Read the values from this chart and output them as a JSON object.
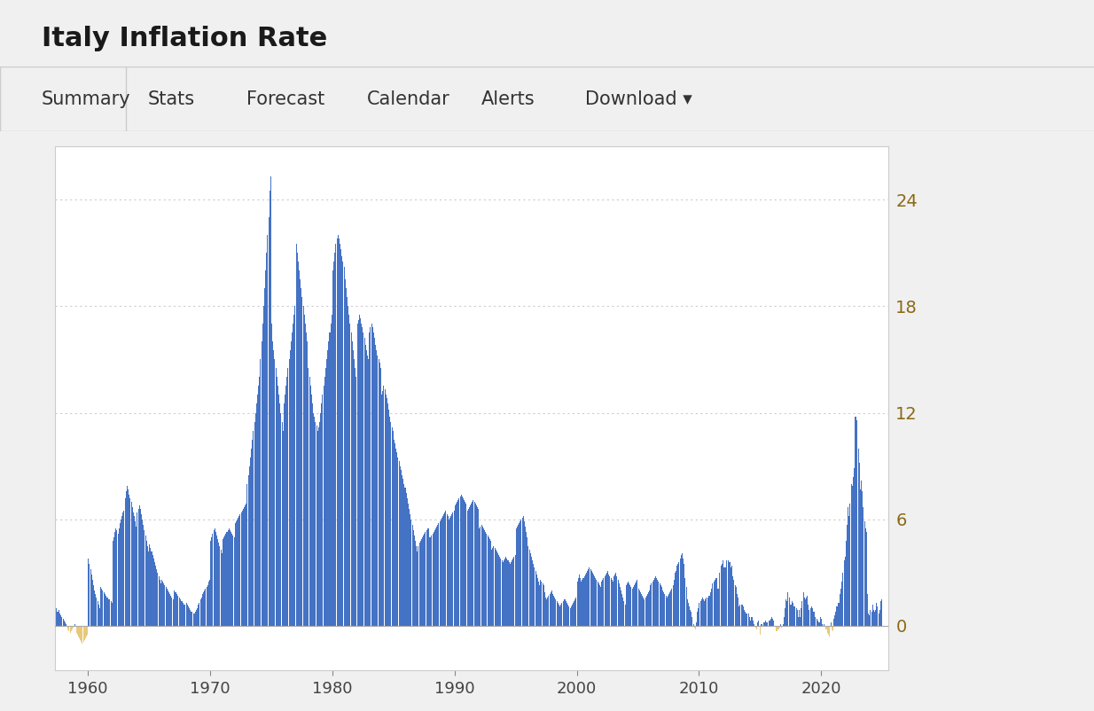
{
  "title": "Italy Inflation Rate",
  "nav_items": [
    "Summary",
    "Stats",
    "Forecast",
    "Calendar",
    "Alerts",
    "Download ▾"
  ],
  "bar_color": "#4472C4",
  "negative_bar_color": "#E8C87A",
  "background_color": "#f0f0f0",
  "chart_bg": "#ffffff",
  "header_bg": "#ebebeb",
  "nav_bg": "#ffffff",
  "ytick_color": "#8B6914",
  "yticks": [
    0,
    6,
    12,
    18,
    24
  ],
  "xticks": [
    1960,
    1970,
    1980,
    1990,
    2000,
    2010,
    2020
  ],
  "ymin": -2.5,
  "ymax": 27,
  "title_fontsize": 22,
  "nav_fontsize": 15,
  "axis_fontsize": 13,
  "grid_color": "#cccccc",
  "monthly_data": {
    "1957": [
      1.8,
      1.6,
      1.4,
      1.2,
      1.0,
      0.8,
      0.8,
      0.9,
      0.7,
      0.6,
      0.5,
      0.4
    ],
    "1958": [
      0.3,
      0.2,
      0.1,
      0.0,
      -0.2,
      -0.3,
      -0.4,
      -0.3,
      -0.2,
      -0.1,
      0.0,
      0.1
    ],
    "1959": [
      -0.4,
      -0.5,
      -0.6,
      -0.7,
      -0.8,
      -0.9,
      -1.0,
      -0.9,
      -0.8,
      -0.7,
      -0.6,
      -0.5
    ],
    "1960": [
      3.8,
      3.5,
      3.2,
      2.9,
      2.6,
      2.3,
      2.0,
      1.8,
      1.6,
      1.4,
      1.2,
      1.0
    ],
    "1961": [
      2.2,
      2.1,
      2.0,
      1.9,
      1.8,
      1.7,
      1.6,
      1.6,
      1.5,
      1.5,
      1.4,
      1.3
    ],
    "1962": [
      4.8,
      5.0,
      5.3,
      5.5,
      5.4,
      5.2,
      5.5,
      5.8,
      6.0,
      6.2,
      6.4,
      6.5
    ],
    "1963": [
      7.2,
      7.6,
      7.9,
      7.7,
      7.4,
      7.2,
      7.0,
      6.7,
      6.4,
      6.2,
      5.9,
      5.6
    ],
    "1964": [
      6.4,
      6.6,
      6.8,
      6.6,
      6.3,
      6.0,
      5.7,
      5.4,
      5.1,
      4.8,
      4.5,
      4.2
    ],
    "1965": [
      4.6,
      4.4,
      4.2,
      4.0,
      3.8,
      3.6,
      3.4,
      3.2,
      3.0,
      2.8,
      2.6,
      2.4
    ],
    "1966": [
      2.6,
      2.5,
      2.4,
      2.3,
      2.2,
      2.1,
      2.0,
      1.9,
      1.8,
      1.7,
      1.6,
      1.5
    ],
    "1967": [
      2.0,
      1.9,
      1.9,
      1.8,
      1.7,
      1.6,
      1.5,
      1.4,
      1.4,
      1.3,
      1.2,
      1.2
    ],
    "1968": [
      1.3,
      1.2,
      1.1,
      1.0,
      0.9,
      0.8,
      0.8,
      0.7,
      0.7,
      0.8,
      0.9,
      1.0
    ],
    "1969": [
      1.2,
      1.3,
      1.5,
      1.6,
      1.8,
      1.9,
      2.0,
      2.1,
      2.2,
      2.3,
      2.5,
      2.6
    ],
    "1970": [
      4.8,
      5.0,
      5.2,
      5.4,
      5.5,
      5.3,
      5.1,
      4.9,
      4.7,
      4.5,
      4.3,
      4.1
    ],
    "1971": [
      4.9,
      5.0,
      5.1,
      5.2,
      5.3,
      5.4,
      5.5,
      5.4,
      5.3,
      5.2,
      5.1,
      5.0
    ],
    "1972": [
      5.8,
      5.9,
      6.0,
      6.1,
      6.2,
      6.3,
      6.4,
      6.5,
      6.6,
      6.7,
      6.8,
      6.9
    ],
    "1973": [
      8.0,
      8.5,
      9.0,
      9.5,
      10.0,
      10.5,
      11.0,
      11.5,
      12.0,
      12.5,
      13.0,
      13.5
    ],
    "1974": [
      14.0,
      15.0,
      16.0,
      17.0,
      18.0,
      19.0,
      20.0,
      21.0,
      22.0,
      23.0,
      24.5,
      25.3
    ],
    "1975": [
      17.0,
      16.0,
      15.5,
      15.0,
      14.5,
      14.0,
      13.5,
      13.0,
      12.5,
      12.0,
      11.5,
      11.0
    ],
    "1976": [
      12.5,
      13.0,
      13.5,
      14.0,
      14.5,
      15.0,
      15.5,
      16.0,
      16.5,
      17.0,
      17.5,
      18.0
    ],
    "1977": [
      21.5,
      21.0,
      20.5,
      20.0,
      19.5,
      19.0,
      18.5,
      18.0,
      17.5,
      17.0,
      16.5,
      16.0
    ],
    "1978": [
      14.5,
      14.0,
      13.5,
      13.0,
      12.5,
      12.0,
      11.8,
      11.5,
      11.3,
      11.0,
      11.2,
      11.5
    ],
    "1979": [
      12.0,
      12.5,
      13.0,
      13.5,
      14.0,
      14.5,
      15.0,
      15.5,
      16.0,
      16.5,
      17.0,
      17.5
    ],
    "1980": [
      20.0,
      20.5,
      21.0,
      21.5,
      21.8,
      22.0,
      21.8,
      21.5,
      21.2,
      20.8,
      20.5,
      20.2
    ],
    "1981": [
      19.5,
      19.0,
      18.5,
      18.0,
      17.5,
      17.0,
      16.5,
      16.0,
      15.5,
      15.0,
      14.5,
      14.0
    ],
    "1982": [
      17.0,
      17.2,
      17.5,
      17.3,
      17.0,
      16.8,
      16.5,
      16.2,
      15.8,
      15.5,
      15.2,
      15.0
    ],
    "1983": [
      16.5,
      16.8,
      17.0,
      16.8,
      16.5,
      16.2,
      15.8,
      15.5,
      15.2,
      15.0,
      14.8,
      14.5
    ],
    "1984": [
      13.0,
      13.2,
      13.5,
      13.3,
      13.0,
      12.8,
      12.5,
      12.2,
      11.8,
      11.5,
      11.2,
      11.0
    ],
    "1985": [
      10.5,
      10.3,
      10.0,
      9.8,
      9.5,
      9.3,
      9.0,
      8.8,
      8.5,
      8.3,
      8.0,
      7.8
    ],
    "1986": [
      7.5,
      7.2,
      6.9,
      6.6,
      6.3,
      6.0,
      5.7,
      5.4,
      5.1,
      4.8,
      4.5,
      4.2
    ],
    "1987": [
      4.5,
      4.7,
      4.8,
      4.9,
      5.0,
      5.1,
      5.2,
      5.3,
      5.4,
      5.5,
      5.5,
      5.0
    ],
    "1988": [
      5.0,
      5.1,
      5.2,
      5.3,
      5.4,
      5.5,
      5.6,
      5.7,
      5.8,
      5.9,
      6.0,
      6.1
    ],
    "1989": [
      6.2,
      6.3,
      6.4,
      6.5,
      6.3,
      6.2,
      6.0,
      6.1,
      6.2,
      6.3,
      6.4,
      6.5
    ],
    "1990": [
      6.8,
      6.9,
      7.0,
      7.1,
      7.2,
      7.3,
      7.4,
      7.3,
      7.2,
      7.1,
      7.0,
      6.9
    ],
    "1991": [
      6.5,
      6.6,
      6.7,
      6.8,
      6.9,
      7.0,
      7.1,
      7.0,
      6.9,
      6.8,
      6.7,
      6.6
    ],
    "1992": [
      5.5,
      5.6,
      5.7,
      5.6,
      5.5,
      5.4,
      5.3,
      5.2,
      5.1,
      5.0,
      4.9,
      4.8
    ],
    "1993": [
      4.3,
      4.4,
      4.5,
      4.4,
      4.3,
      4.2,
      4.1,
      4.0,
      3.9,
      3.8,
      3.7,
      3.6
    ],
    "1994": [
      3.7,
      3.8,
      3.9,
      3.8,
      3.7,
      3.6,
      3.5,
      3.6,
      3.7,
      3.8,
      3.9,
      4.0
    ],
    "1995": [
      5.5,
      5.6,
      5.7,
      5.8,
      5.9,
      6.0,
      6.1,
      6.2,
      5.9,
      5.6,
      5.3,
      5.0
    ],
    "1996": [
      4.5,
      4.3,
      4.1,
      3.9,
      3.7,
      3.5,
      3.3,
      3.1,
      2.9,
      2.7,
      2.5,
      2.3
    ],
    "1997": [
      2.6,
      2.5,
      2.4,
      2.3,
      1.9,
      1.6,
      1.5,
      1.6,
      1.7,
      1.8,
      1.9,
      2.0
    ],
    "1998": [
      1.8,
      1.7,
      1.6,
      1.5,
      1.4,
      1.3,
      1.2,
      1.1,
      1.2,
      1.3,
      1.4,
      1.5
    ],
    "1999": [
      1.5,
      1.4,
      1.3,
      1.2,
      1.1,
      1.0,
      1.1,
      1.2,
      1.3,
      1.4,
      1.5,
      1.6
    ],
    "2000": [
      2.5,
      2.7,
      2.9,
      2.7,
      2.5,
      2.6,
      2.7,
      2.8,
      2.9,
      3.0,
      3.1,
      3.2
    ],
    "2001": [
      3.3,
      3.2,
      3.1,
      3.0,
      2.9,
      2.8,
      2.7,
      2.6,
      2.5,
      2.4,
      2.3,
      2.2
    ],
    "2002": [
      2.5,
      2.6,
      2.7,
      2.8,
      2.9,
      3.0,
      3.1,
      2.9,
      2.8,
      2.7,
      2.6,
      2.5
    ],
    "2003": [
      2.8,
      2.9,
      3.0,
      2.8,
      2.6,
      2.4,
      2.2,
      2.0,
      1.8,
      1.6,
      1.4,
      1.2
    ],
    "2004": [
      2.3,
      2.4,
      2.5,
      2.4,
      2.3,
      2.2,
      2.1,
      2.2,
      2.3,
      2.4,
      2.5,
      2.6
    ],
    "2005": [
      2.1,
      2.0,
      1.9,
      1.8,
      1.7,
      1.6,
      1.5,
      1.6,
      1.7,
      1.8,
      1.9,
      2.0
    ],
    "2006": [
      2.3,
      2.4,
      2.5,
      2.6,
      2.7,
      2.8,
      2.7,
      2.6,
      2.5,
      2.4,
      2.3,
      2.2
    ],
    "2007": [
      2.0,
      1.9,
      1.8,
      1.7,
      1.6,
      1.7,
      1.8,
      1.9,
      2.0,
      2.1,
      2.3,
      2.6
    ],
    "2008": [
      3.0,
      3.1,
      3.4,
      3.5,
      3.6,
      3.8,
      4.0,
      4.1,
      3.8,
      3.5,
      2.7,
      2.2
    ],
    "2009": [
      1.5,
      1.3,
      1.1,
      0.9,
      0.8,
      0.5,
      0.1,
      -0.1,
      -0.2,
      0.2,
      0.8,
      1.0
    ],
    "2010": [
      1.3,
      1.4,
      1.5,
      1.6,
      1.5,
      1.4,
      1.5,
      1.6,
      1.6,
      1.7,
      1.7,
      1.9
    ],
    "2011": [
      2.1,
      2.4,
      2.5,
      2.6,
      2.7,
      2.7,
      2.1,
      2.1,
      3.0,
      3.4,
      3.5,
      3.7
    ],
    "2012": [
      3.3,
      3.3,
      3.3,
      3.7,
      3.7,
      3.6,
      3.6,
      3.3,
      3.4,
      2.8,
      2.6,
      2.3
    ],
    "2013": [
      2.2,
      1.8,
      1.6,
      1.1,
      1.2,
      1.2,
      1.2,
      1.1,
      0.9,
      0.8,
      0.7,
      0.7
    ],
    "2014": [
      0.7,
      0.5,
      0.3,
      0.5,
      0.5,
      0.3,
      0.1,
      -0.1,
      -0.2,
      0.2,
      0.3,
      0.0
    ],
    "2015": [
      -0.5,
      0.1,
      0.0,
      0.2,
      0.2,
      0.3,
      0.2,
      0.2,
      0.3,
      0.3,
      0.4,
      0.5
    ],
    "2016": [
      0.4,
      0.3,
      0.0,
      -0.3,
      -0.3,
      -0.2,
      -0.2,
      -0.1,
      0.1,
      -0.1,
      0.1,
      0.5
    ],
    "2017": [
      1.0,
      1.5,
      1.4,
      1.9,
      1.6,
      1.2,
      1.2,
      1.4,
      1.3,
      1.1,
      1.1,
      1.0
    ],
    "2018": [
      0.9,
      0.5,
      0.9,
      0.5,
      1.0,
      1.4,
      1.9,
      1.6,
      1.5,
      1.6,
      1.7,
      1.2
    ],
    "2019": [
      0.9,
      1.0,
      1.1,
      1.0,
      0.8,
      0.8,
      0.5,
      0.4,
      0.3,
      0.2,
      0.2,
      0.5
    ],
    "2020": [
      0.4,
      0.1,
      0.1,
      0.0,
      -0.2,
      -0.2,
      -0.4,
      -0.5,
      -0.6,
      0.2,
      -0.2,
      -0.3
    ],
    "2021": [
      0.4,
      0.6,
      0.8,
      1.1,
      1.3,
      1.3,
      1.8,
      2.1,
      2.5,
      3.0,
      3.7,
      3.9
    ],
    "2022": [
      4.8,
      5.7,
      6.7,
      6.2,
      6.9,
      8.0,
      7.9,
      8.4,
      8.9,
      11.8,
      11.8,
      11.6
    ],
    "2023": [
      10.0,
      9.2,
      7.7,
      8.2,
      7.6,
      6.7,
      5.9,
      5.5,
      5.3,
      1.8,
      0.7,
      0.6
    ],
    "2024": [
      0.9,
      0.8,
      1.2,
      0.9,
      0.8,
      0.9,
      1.3,
      1.1,
      0.7,
      0.9,
      1.4,
      1.5
    ]
  }
}
